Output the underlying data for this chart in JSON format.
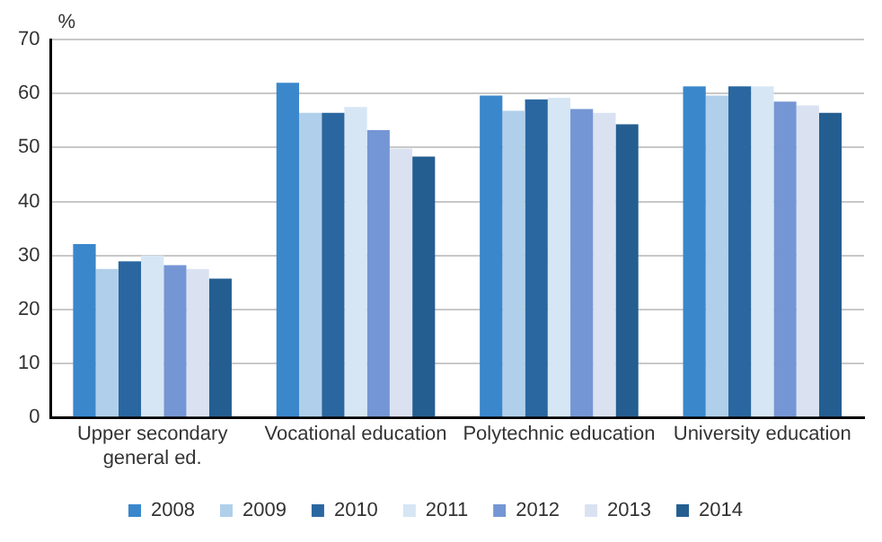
{
  "chart_data": {
    "type": "bar",
    "ylabel": "%",
    "categories": [
      "Upper secondary general ed.",
      "Vocational education",
      "Polytechnic education",
      "University education"
    ],
    "series": [
      {
        "name": "2008",
        "color": "#3a87cc",
        "values": [
          32.1,
          62.0,
          59.6,
          61.3
        ]
      },
      {
        "name": "2009",
        "color": "#b0cfea",
        "values": [
          27.5,
          56.4,
          56.8,
          59.6
        ]
      },
      {
        "name": "2010",
        "color": "#2a67a0",
        "values": [
          28.9,
          56.4,
          58.9,
          61.3
        ]
      },
      {
        "name": "2011",
        "color": "#d6e6f4",
        "values": [
          30.0,
          57.5,
          59.2,
          61.3
        ]
      },
      {
        "name": "2012",
        "color": "#7596d4",
        "values": [
          28.2,
          53.2,
          57.1,
          58.5
        ]
      },
      {
        "name": "2013",
        "color": "#dae2f2",
        "values": [
          27.5,
          49.8,
          56.4,
          57.8
        ]
      },
      {
        "name": "2014",
        "color": "#245e91",
        "values": [
          25.7,
          48.3,
          54.3,
          56.4
        ]
      }
    ],
    "ylim": [
      0,
      70
    ],
    "yticks": [
      0,
      10,
      20,
      30,
      40,
      50,
      60,
      70
    ],
    "grid": "y",
    "legend": "bottom"
  }
}
